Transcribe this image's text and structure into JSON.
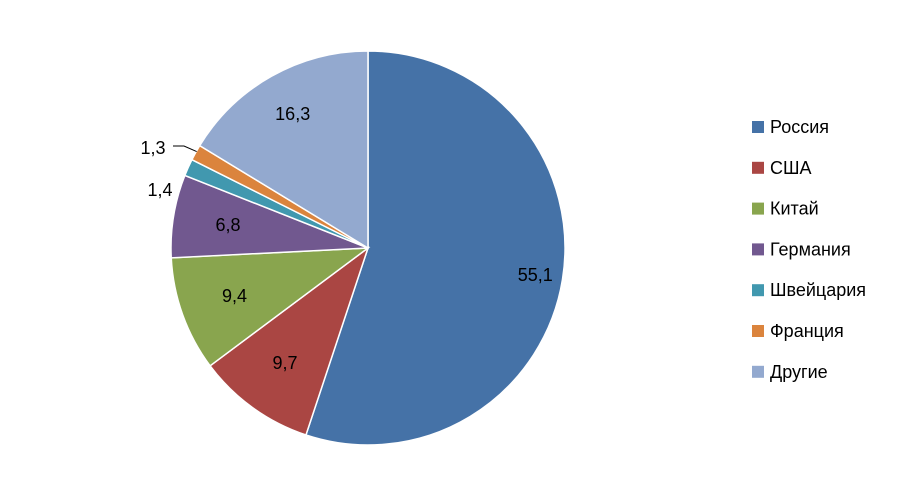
{
  "chart_data": {
    "type": "pie",
    "title": "",
    "start_angle_deg": 0,
    "direction": "clockwise",
    "legend_position": "right",
    "slices": [
      {
        "name": "Россия",
        "label": "55,1",
        "value": 55.1,
        "color": "#4572A7"
      },
      {
        "name": "США",
        "label": "9,7",
        "value": 9.7,
        "color": "#AA4643"
      },
      {
        "name": "Китай",
        "label": "9,4",
        "value": 9.4,
        "color": "#89A54E"
      },
      {
        "name": "Германия",
        "label": "6,8",
        "value": 6.8,
        "color": "#71588F"
      },
      {
        "name": "Швейцария",
        "label": "1,4",
        "value": 1.4,
        "color": "#4198AF"
      },
      {
        "name": "Франция",
        "label": "1,3",
        "value": 1.3,
        "color": "#DB843D"
      },
      {
        "name": "Другие",
        "label": "16,3",
        "value": 16.3,
        "color": "#93A9CF"
      }
    ]
  }
}
